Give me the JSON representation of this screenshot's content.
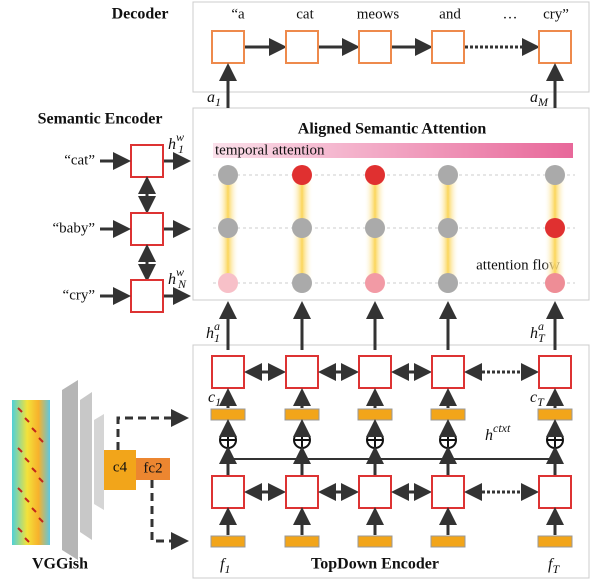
{
  "decoder": {
    "title": "Decoder",
    "tokens": [
      "“a",
      "cat",
      "meows",
      "and",
      "…",
      "cry”"
    ],
    "inputs": [
      {
        "base": "a",
        "sub": "1"
      },
      {
        "base": "a",
        "sub": "M"
      }
    ]
  },
  "semantic_encoder": {
    "title": "Semantic Encoder",
    "words": [
      "“cat”",
      "“baby”",
      "“cry”"
    ],
    "outputs": [
      {
        "base": "h",
        "sup": "w",
        "sub": "1"
      },
      {
        "base": "h",
        "sup": "w",
        "sub": "N"
      }
    ]
  },
  "attention": {
    "title": "Aligned Semantic Attention",
    "temporal": "temporal attention",
    "flow": "attention flow"
  },
  "topdown": {
    "title": "TopDown Encoder",
    "outputs": [
      {
        "base": "h",
        "sup": "a",
        "sub": "1"
      },
      {
        "base": "h",
        "sup": "a",
        "sub": "T"
      }
    ],
    "cells": [
      {
        "base": "c",
        "sub": "1"
      },
      {
        "base": "c",
        "sub": "T"
      }
    ],
    "context": {
      "base": "h",
      "sup": "ctxt"
    },
    "features": [
      {
        "base": "f",
        "sub": "1"
      },
      {
        "base": "f",
        "sub": "T"
      }
    ]
  },
  "vggish": {
    "title": "VGGish",
    "layers": [
      "c4",
      "fc2"
    ]
  }
}
